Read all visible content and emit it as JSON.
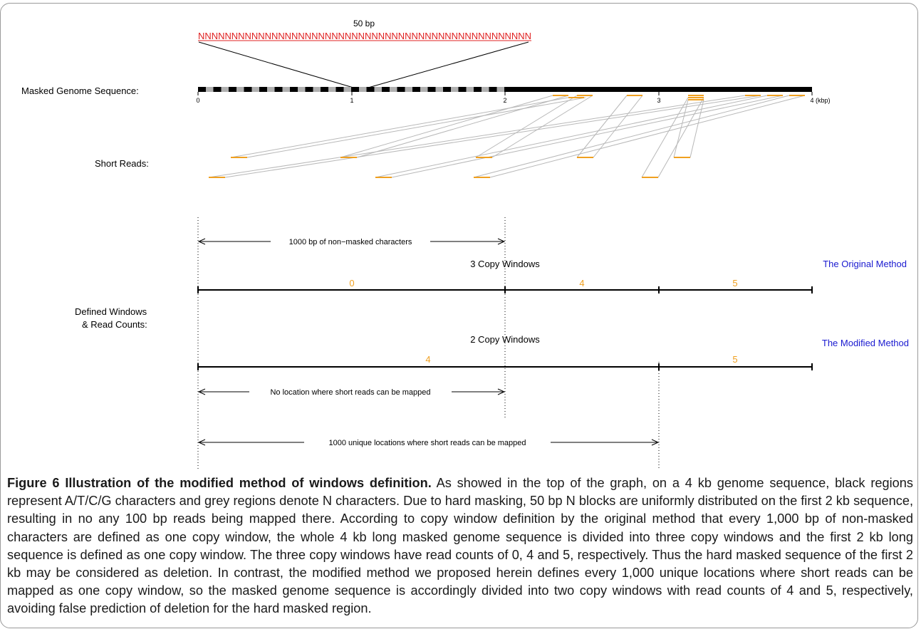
{
  "labels": {
    "masked_genome_sequence": "Masked Genome Sequence:",
    "short_reads": "Short Reads:",
    "defined_windows_line1": "Defined Windows",
    "defined_windows_line2": "& Read Counts:"
  },
  "n_block": {
    "size_label": "50 bp",
    "sequence": "NNNNNNNNNNNNNNNNNNNNNNNNNNNNNNNNNNNNNNNNNNNNNNNNNN"
  },
  "genome_axis": {
    "ticks": [
      "0",
      "1",
      "2",
      "3",
      "4"
    ],
    "unit": "(kbp)"
  },
  "methods": {
    "original": {
      "name": "The Original Method",
      "windows_title": "3 Copy Windows",
      "read_counts": [
        "0",
        "4",
        "5"
      ],
      "span_label": "1000 bp of non−masked characters"
    },
    "modified": {
      "name": "The Modified Method",
      "windows_title": "2 Copy Windows",
      "read_counts": [
        "4",
        "5"
      ],
      "span_label_no_location": "No location where short reads can be mapped",
      "span_label_unique": "1000 unique locations where short reads can be mapped"
    }
  },
  "colors": {
    "masked_n": "#b0b0b0",
    "sequence": "#000000",
    "n_text": "#e02020",
    "reads": "#f0a020",
    "counts": "#f0a020",
    "method_label": "#1a1ad0",
    "mapping_lines": "#b8b8b8"
  },
  "caption": {
    "title": "Figure 6 Illustration of the modified method of windows definition.",
    "body": " As showed in the top of the graph, on a 4 kb genome sequence, black regions represent A/T/C/G characters and grey regions denote N characters. Due to hard masking, 50 bp N blocks are uniformly distributed on the first 2 kb sequence, resulting in no any 100 bp reads being mapped there. According to copy window definition by the original method that every 1,000 bp of non-masked characters are defined as one copy window, the whole 4 kb long masked genome sequence is divided into three copy windows and the first 2 kb long sequence is defined as one copy window. The three copy windows have read counts of 0, 4 and 5, respectively. Thus the hard masked sequence of the first 2 kb may be considered as deletion. In contrast, the modified method we proposed herein defines every 1,000 unique locations where short reads can be mapped as one copy window, so the masked genome sequence is accordingly divided into two copy windows with read counts of 4 and 5, respectively, avoiding false prediction of deletion for the hard masked region."
  }
}
